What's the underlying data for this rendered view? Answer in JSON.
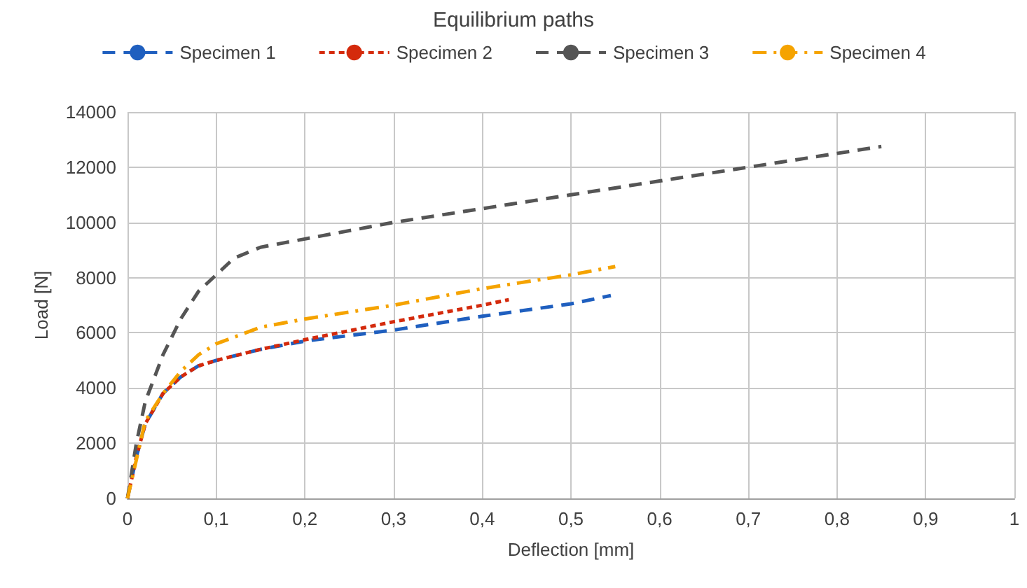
{
  "chart_data": {
    "type": "line",
    "title": "Equilibrium paths",
    "xlabel": "Deflection [mm]",
    "ylabel": "Load [N]",
    "xlim": [
      0,
      1
    ],
    "xticks": [
      0,
      {
        "value": 0.1,
        "label": "0,1"
      },
      {
        "value": 0.2,
        "label": "0,2"
      },
      {
        "value": 0.3,
        "label": "0,3"
      },
      {
        "value": 0.4,
        "label": "0,4"
      },
      {
        "value": 0.5,
        "label": "0,5"
      },
      {
        "value": 0.6,
        "label": "0,6"
      },
      {
        "value": 0.7,
        "label": "0,7"
      },
      {
        "value": 0.8,
        "label": "0,8"
      },
      {
        "value": 0.9,
        "label": "0,9"
      },
      1
    ],
    "ylim": [
      0,
      14000
    ],
    "yticks": [
      0,
      2000,
      4000,
      6000,
      8000,
      10000,
      12000,
      14000
    ],
    "grid": true,
    "legend": "top",
    "marker": "none",
    "series": [
      {
        "name": "Specimen 1",
        "color": "#1f5fbf",
        "line_style": "dashed",
        "x": [
          0,
          0.01,
          0.02,
          0.04,
          0.06,
          0.08,
          0.1,
          0.15,
          0.2,
          0.3,
          0.4,
          0.5,
          0.545
        ],
        "values": [
          0,
          1500,
          2700,
          3800,
          4400,
          4800,
          5000,
          5400,
          5700,
          6100,
          6600,
          7050,
          7350
        ]
      },
      {
        "name": "Specimen 2",
        "color": "#d42a0c",
        "line_style": "dotted",
        "x": [
          0,
          0.01,
          0.02,
          0.04,
          0.06,
          0.08,
          0.1,
          0.15,
          0.2,
          0.3,
          0.4,
          0.43
        ],
        "values": [
          0,
          1500,
          2700,
          3800,
          4400,
          4800,
          5000,
          5400,
          5750,
          6400,
          7000,
          7200
        ]
      },
      {
        "name": "Specimen 3",
        "color": "#555555",
        "line_style": "dashed",
        "x": [
          0,
          0.01,
          0.02,
          0.04,
          0.06,
          0.08,
          0.1,
          0.12,
          0.15,
          0.2,
          0.3,
          0.4,
          0.5,
          0.6,
          0.7,
          0.8,
          0.85
        ],
        "values": [
          0,
          2000,
          3500,
          5200,
          6500,
          7500,
          8100,
          8700,
          9100,
          9400,
          10000,
          10500,
          11000,
          11500,
          12000,
          12500,
          12750
        ]
      },
      {
        "name": "Specimen 4",
        "color": "#f5a300",
        "line_style": "dashdot",
        "x": [
          0,
          0.01,
          0.02,
          0.04,
          0.06,
          0.08,
          0.1,
          0.15,
          0.2,
          0.3,
          0.4,
          0.5,
          0.55
        ],
        "values": [
          0,
          1400,
          2800,
          3800,
          4600,
          5200,
          5600,
          6200,
          6500,
          7000,
          7600,
          8100,
          8400
        ]
      }
    ]
  }
}
